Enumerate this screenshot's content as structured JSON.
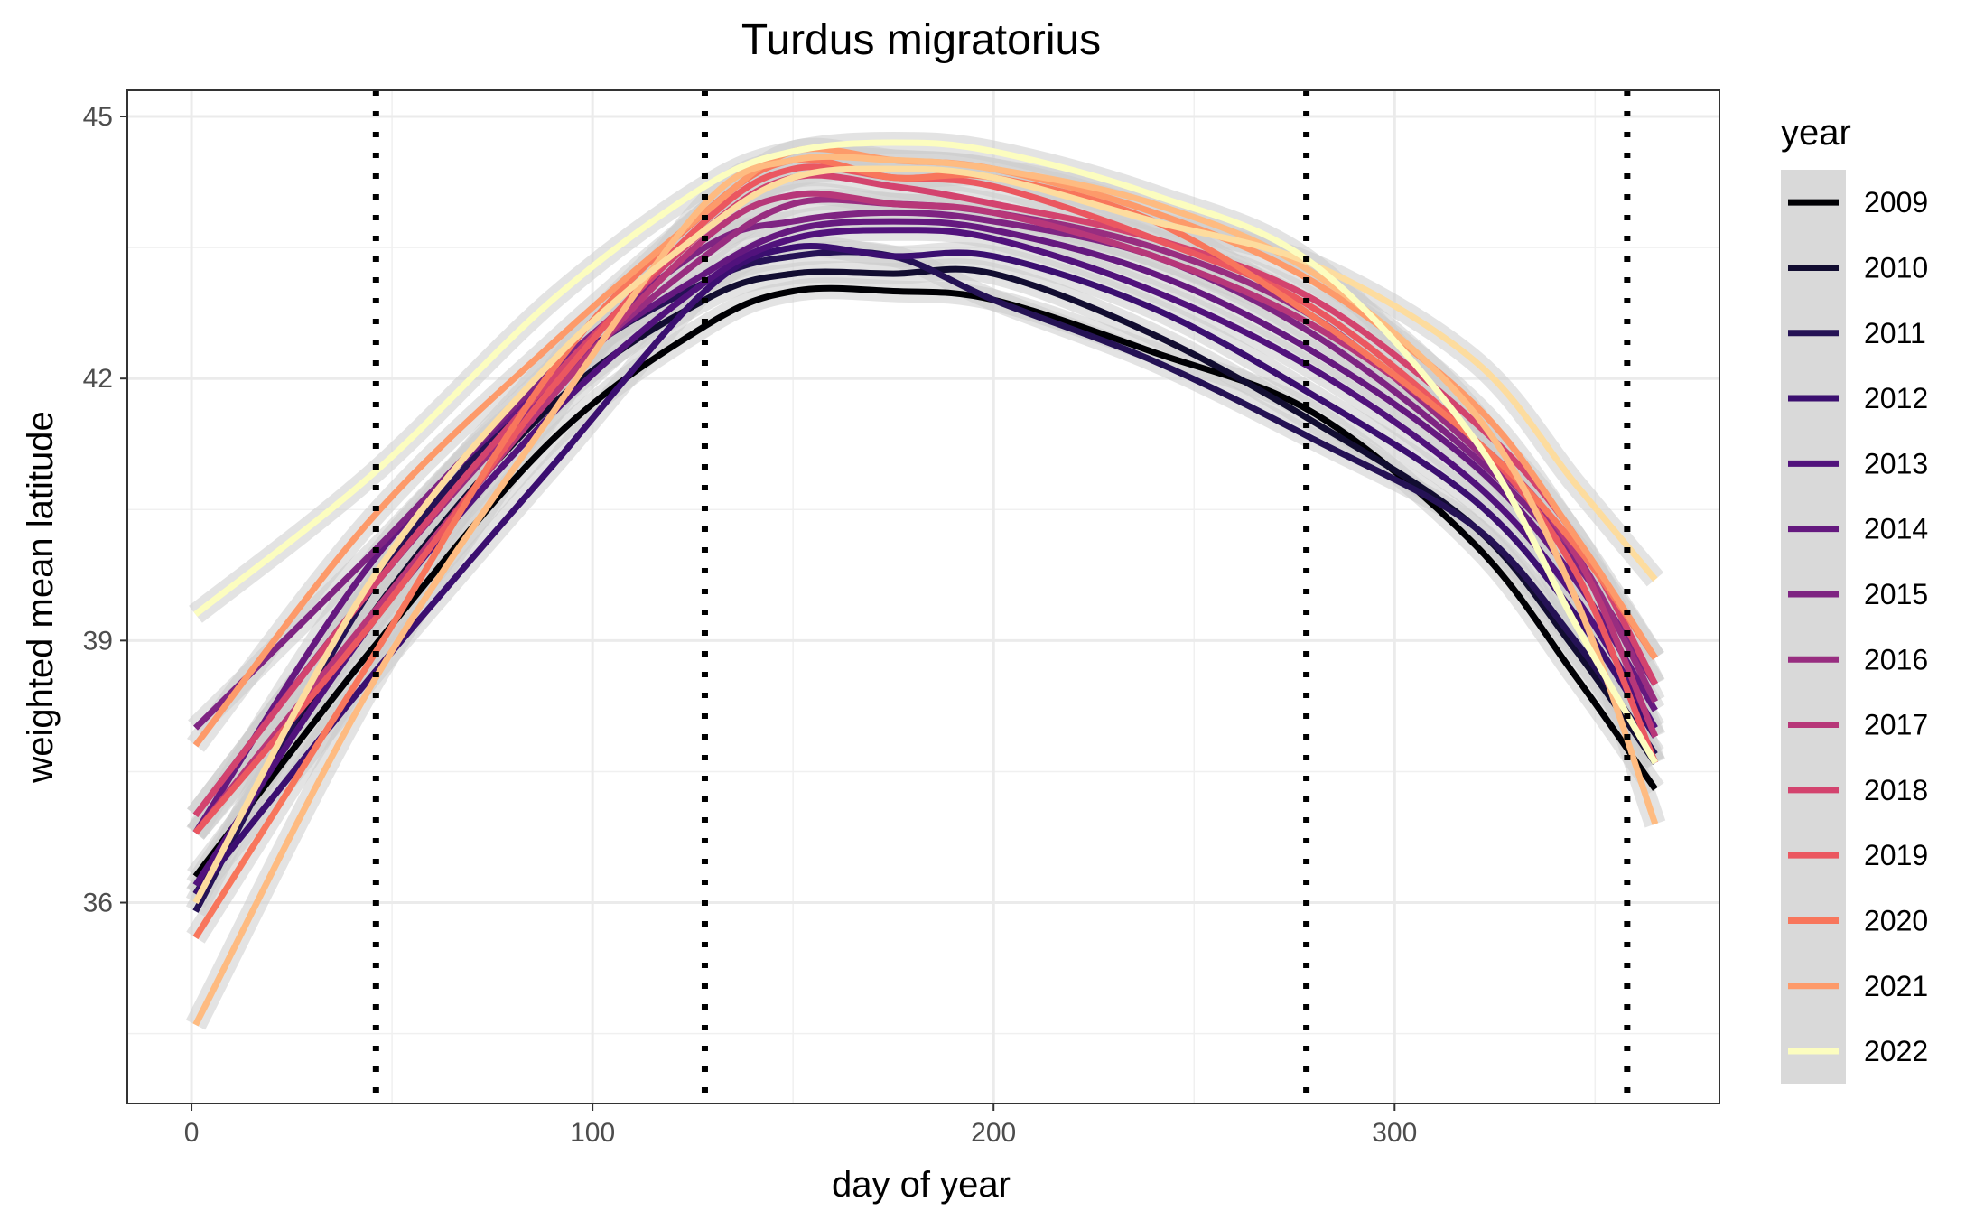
{
  "chart_data": {
    "type": "line",
    "title": "Turdus migratorius",
    "xlabel": "day of year",
    "ylabel": "weighted mean latitude",
    "xlim": [
      -16,
      381
    ],
    "ylim": [
      33.7,
      45.3
    ],
    "xticks": [
      0,
      100,
      200,
      300
    ],
    "yticks": [
      36,
      39,
      42,
      45
    ],
    "x_tick_labels": [
      "0",
      "100",
      "200",
      "300"
    ],
    "y_tick_labels": [
      "36",
      "39",
      "42",
      "45"
    ],
    "grid": true,
    "vlines_x": [
      46,
      128,
      278,
      358
    ],
    "vline_style": "dotted black",
    "confidence_band": true,
    "legend": {
      "title": "year",
      "position": "right"
    },
    "x": [
      1,
      45,
      90,
      128,
      150,
      175,
      200,
      240,
      280,
      320,
      345,
      365
    ],
    "series": [
      {
        "name": "2009",
        "color": "#000004",
        "values": [
          36.3,
          38.9,
          41.3,
          42.6,
          43.0,
          43.0,
          42.9,
          42.3,
          41.6,
          40.1,
          38.6,
          37.3
        ]
      },
      {
        "name": "2010",
        "color": "#120d31",
        "values": [
          36.1,
          39.3,
          41.7,
          42.9,
          43.2,
          43.2,
          43.2,
          42.5,
          41.5,
          40.3,
          38.9,
          37.6
        ]
      },
      {
        "name": "2011",
        "color": "#251255",
        "values": [
          35.9,
          39.6,
          42.0,
          43.1,
          43.4,
          43.4,
          42.9,
          42.2,
          41.3,
          40.3,
          39.0,
          37.7
        ]
      },
      {
        "name": "2012",
        "color": "#3b0f70",
        "values": [
          36.1,
          38.6,
          41.0,
          43.0,
          43.5,
          43.4,
          43.4,
          42.8,
          41.8,
          40.6,
          39.3,
          37.9
        ]
      },
      {
        "name": "2013",
        "color": "#51127c",
        "values": [
          36.2,
          39.2,
          41.6,
          43.1,
          43.6,
          43.7,
          43.6,
          43.0,
          42.1,
          40.8,
          39.5,
          38.0
        ]
      },
      {
        "name": "2014",
        "color": "#65197f",
        "values": [
          36.8,
          39.9,
          42.0,
          43.2,
          43.7,
          43.8,
          43.7,
          43.2,
          42.3,
          41.0,
          39.7,
          38.2
        ]
      },
      {
        "name": "2015",
        "color": "#7e2482",
        "values": [
          38.0,
          40.0,
          42.1,
          43.5,
          43.8,
          43.9,
          43.8,
          43.4,
          42.5,
          41.1,
          39.9,
          38.5
        ]
      },
      {
        "name": "2016",
        "color": "#982d80",
        "values": [
          37.0,
          39.6,
          41.9,
          43.4,
          44.0,
          44.0,
          43.9,
          43.5,
          42.7,
          41.2,
          40.0,
          38.3
        ]
      },
      {
        "name": "2017",
        "color": "#b73779",
        "values": [
          36.8,
          39.3,
          41.8,
          43.6,
          44.1,
          44.0,
          43.9,
          43.4,
          42.6,
          41.3,
          40.0,
          37.9
        ]
      },
      {
        "name": "2018",
        "color": "#d3436e",
        "values": [
          37.0,
          39.6,
          42.0,
          43.7,
          44.3,
          44.2,
          44.0,
          43.6,
          42.9,
          41.5,
          40.2,
          38.5
        ]
      },
      {
        "name": "2019",
        "color": "#eb5760",
        "values": [
          36.8,
          39.2,
          41.9,
          43.8,
          44.4,
          44.3,
          44.2,
          43.6,
          42.8,
          41.3,
          39.8,
          37.6
        ]
      },
      {
        "name": "2020",
        "color": "#f8765c",
        "values": [
          35.6,
          38.8,
          42.1,
          43.9,
          44.5,
          44.3,
          44.3,
          43.8,
          42.7,
          41.3,
          40.1,
          38.8
        ]
      },
      {
        "name": "2021",
        "color": "#fd9a6a",
        "values": [
          37.8,
          40.4,
          42.4,
          43.9,
          44.6,
          44.5,
          44.4,
          43.9,
          43.1,
          41.7,
          40.2,
          38.8
        ]
      },
      {
        "name": "2022",
        "color": "#febb81",
        "values": [
          34.6,
          38.5,
          41.6,
          44.0,
          44.5,
          44.5,
          44.4,
          44.0,
          43.2,
          41.6,
          39.5,
          36.9
        ]
      },
      {
        "name": "2022-b",
        "legend_name": "2021",
        "color": "#fddc9e",
        "values": [
          36.0,
          39.7,
          42.2,
          43.7,
          44.3,
          44.4,
          44.3,
          43.8,
          43.3,
          42.2,
          40.8,
          39.7
        ]
      },
      {
        "name": "2022-c",
        "legend_name": "2022",
        "color": "#fcfdbf",
        "values": [
          39.3,
          40.9,
          42.9,
          44.2,
          44.6,
          44.7,
          44.6,
          44.1,
          43.3,
          41.3,
          39.2,
          37.6
        ]
      }
    ],
    "legend_entries": [
      {
        "label": "2009",
        "color": "#000004"
      },
      {
        "label": "2010",
        "color": "#120d31"
      },
      {
        "label": "2011",
        "color": "#251255"
      },
      {
        "label": "2012",
        "color": "#3b0f70"
      },
      {
        "label": "2013",
        "color": "#51127c"
      },
      {
        "label": "2014",
        "color": "#65197f"
      },
      {
        "label": "2015",
        "color": "#7e2482"
      },
      {
        "label": "2016",
        "color": "#982d80"
      },
      {
        "label": "2017",
        "color": "#b73779"
      },
      {
        "label": "2018",
        "color": "#d3436e"
      },
      {
        "label": "2019",
        "color": "#eb5760"
      },
      {
        "label": "2020",
        "color": "#f8765c"
      },
      {
        "label": "2021",
        "color": "#fd9a6a"
      },
      {
        "label": "2022",
        "color": "#fcfdbf"
      }
    ]
  }
}
